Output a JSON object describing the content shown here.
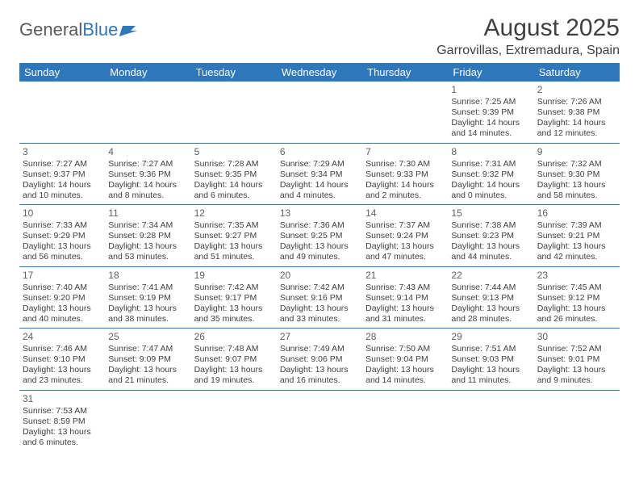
{
  "logo": {
    "text1": "General",
    "text2": "Blue"
  },
  "title": "August 2025",
  "location": "Garrovillas, Extremadura, Spain",
  "weekdays": [
    "Sunday",
    "Monday",
    "Tuesday",
    "Wednesday",
    "Thursday",
    "Friday",
    "Saturday"
  ],
  "colors": {
    "header_bg": "#2f77bb",
    "header_text": "#ffffff",
    "text": "#404040",
    "logo_gray": "#5a5a5a",
    "logo_blue": "#2f77bb"
  },
  "weeks": [
    [
      null,
      null,
      null,
      null,
      null,
      {
        "day": "1",
        "sunrise": "Sunrise: 7:25 AM",
        "sunset": "Sunset: 9:39 PM",
        "daylight1": "Daylight: 14 hours",
        "daylight2": "and 14 minutes."
      },
      {
        "day": "2",
        "sunrise": "Sunrise: 7:26 AM",
        "sunset": "Sunset: 9:38 PM",
        "daylight1": "Daylight: 14 hours",
        "daylight2": "and 12 minutes."
      }
    ],
    [
      {
        "day": "3",
        "sunrise": "Sunrise: 7:27 AM",
        "sunset": "Sunset: 9:37 PM",
        "daylight1": "Daylight: 14 hours",
        "daylight2": "and 10 minutes."
      },
      {
        "day": "4",
        "sunrise": "Sunrise: 7:27 AM",
        "sunset": "Sunset: 9:36 PM",
        "daylight1": "Daylight: 14 hours",
        "daylight2": "and 8 minutes."
      },
      {
        "day": "5",
        "sunrise": "Sunrise: 7:28 AM",
        "sunset": "Sunset: 9:35 PM",
        "daylight1": "Daylight: 14 hours",
        "daylight2": "and 6 minutes."
      },
      {
        "day": "6",
        "sunrise": "Sunrise: 7:29 AM",
        "sunset": "Sunset: 9:34 PM",
        "daylight1": "Daylight: 14 hours",
        "daylight2": "and 4 minutes."
      },
      {
        "day": "7",
        "sunrise": "Sunrise: 7:30 AM",
        "sunset": "Sunset: 9:33 PM",
        "daylight1": "Daylight: 14 hours",
        "daylight2": "and 2 minutes."
      },
      {
        "day": "8",
        "sunrise": "Sunrise: 7:31 AM",
        "sunset": "Sunset: 9:32 PM",
        "daylight1": "Daylight: 14 hours",
        "daylight2": "and 0 minutes."
      },
      {
        "day": "9",
        "sunrise": "Sunrise: 7:32 AM",
        "sunset": "Sunset: 9:30 PM",
        "daylight1": "Daylight: 13 hours",
        "daylight2": "and 58 minutes."
      }
    ],
    [
      {
        "day": "10",
        "sunrise": "Sunrise: 7:33 AM",
        "sunset": "Sunset: 9:29 PM",
        "daylight1": "Daylight: 13 hours",
        "daylight2": "and 56 minutes."
      },
      {
        "day": "11",
        "sunrise": "Sunrise: 7:34 AM",
        "sunset": "Sunset: 9:28 PM",
        "daylight1": "Daylight: 13 hours",
        "daylight2": "and 53 minutes."
      },
      {
        "day": "12",
        "sunrise": "Sunrise: 7:35 AM",
        "sunset": "Sunset: 9:27 PM",
        "daylight1": "Daylight: 13 hours",
        "daylight2": "and 51 minutes."
      },
      {
        "day": "13",
        "sunrise": "Sunrise: 7:36 AM",
        "sunset": "Sunset: 9:25 PM",
        "daylight1": "Daylight: 13 hours",
        "daylight2": "and 49 minutes."
      },
      {
        "day": "14",
        "sunrise": "Sunrise: 7:37 AM",
        "sunset": "Sunset: 9:24 PM",
        "daylight1": "Daylight: 13 hours",
        "daylight2": "and 47 minutes."
      },
      {
        "day": "15",
        "sunrise": "Sunrise: 7:38 AM",
        "sunset": "Sunset: 9:23 PM",
        "daylight1": "Daylight: 13 hours",
        "daylight2": "and 44 minutes."
      },
      {
        "day": "16",
        "sunrise": "Sunrise: 7:39 AM",
        "sunset": "Sunset: 9:21 PM",
        "daylight1": "Daylight: 13 hours",
        "daylight2": "and 42 minutes."
      }
    ],
    [
      {
        "day": "17",
        "sunrise": "Sunrise: 7:40 AM",
        "sunset": "Sunset: 9:20 PM",
        "daylight1": "Daylight: 13 hours",
        "daylight2": "and 40 minutes."
      },
      {
        "day": "18",
        "sunrise": "Sunrise: 7:41 AM",
        "sunset": "Sunset: 9:19 PM",
        "daylight1": "Daylight: 13 hours",
        "daylight2": "and 38 minutes."
      },
      {
        "day": "19",
        "sunrise": "Sunrise: 7:42 AM",
        "sunset": "Sunset: 9:17 PM",
        "daylight1": "Daylight: 13 hours",
        "daylight2": "and 35 minutes."
      },
      {
        "day": "20",
        "sunrise": "Sunrise: 7:42 AM",
        "sunset": "Sunset: 9:16 PM",
        "daylight1": "Daylight: 13 hours",
        "daylight2": "and 33 minutes."
      },
      {
        "day": "21",
        "sunrise": "Sunrise: 7:43 AM",
        "sunset": "Sunset: 9:14 PM",
        "daylight1": "Daylight: 13 hours",
        "daylight2": "and 31 minutes."
      },
      {
        "day": "22",
        "sunrise": "Sunrise: 7:44 AM",
        "sunset": "Sunset: 9:13 PM",
        "daylight1": "Daylight: 13 hours",
        "daylight2": "and 28 minutes."
      },
      {
        "day": "23",
        "sunrise": "Sunrise: 7:45 AM",
        "sunset": "Sunset: 9:12 PM",
        "daylight1": "Daylight: 13 hours",
        "daylight2": "and 26 minutes."
      }
    ],
    [
      {
        "day": "24",
        "sunrise": "Sunrise: 7:46 AM",
        "sunset": "Sunset: 9:10 PM",
        "daylight1": "Daylight: 13 hours",
        "daylight2": "and 23 minutes."
      },
      {
        "day": "25",
        "sunrise": "Sunrise: 7:47 AM",
        "sunset": "Sunset: 9:09 PM",
        "daylight1": "Daylight: 13 hours",
        "daylight2": "and 21 minutes."
      },
      {
        "day": "26",
        "sunrise": "Sunrise: 7:48 AM",
        "sunset": "Sunset: 9:07 PM",
        "daylight1": "Daylight: 13 hours",
        "daylight2": "and 19 minutes."
      },
      {
        "day": "27",
        "sunrise": "Sunrise: 7:49 AM",
        "sunset": "Sunset: 9:06 PM",
        "daylight1": "Daylight: 13 hours",
        "daylight2": "and 16 minutes."
      },
      {
        "day": "28",
        "sunrise": "Sunrise: 7:50 AM",
        "sunset": "Sunset: 9:04 PM",
        "daylight1": "Daylight: 13 hours",
        "daylight2": "and 14 minutes."
      },
      {
        "day": "29",
        "sunrise": "Sunrise: 7:51 AM",
        "sunset": "Sunset: 9:03 PM",
        "daylight1": "Daylight: 13 hours",
        "daylight2": "and 11 minutes."
      },
      {
        "day": "30",
        "sunrise": "Sunrise: 7:52 AM",
        "sunset": "Sunset: 9:01 PM",
        "daylight1": "Daylight: 13 hours",
        "daylight2": "and 9 minutes."
      }
    ],
    [
      {
        "day": "31",
        "sunrise": "Sunrise: 7:53 AM",
        "sunset": "Sunset: 8:59 PM",
        "daylight1": "Daylight: 13 hours",
        "daylight2": "and 6 minutes."
      },
      null,
      null,
      null,
      null,
      null,
      null
    ]
  ]
}
